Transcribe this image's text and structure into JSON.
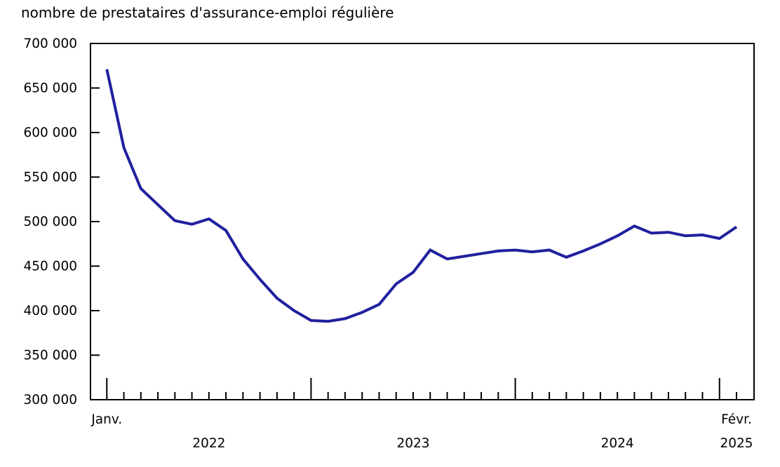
{
  "page": {
    "title": "nombre de prestataires d'assurance-emploi régulière"
  },
  "chart_data": {
    "type": "line",
    "title": "nombre de prestataires d'assurance-emploi régulière",
    "xlabel": "",
    "ylabel": "",
    "ylim": [
      300000,
      700000
    ],
    "grid": false,
    "legend": false,
    "line_color": "#20209e",
    "axis_color": "#000000",
    "x_start_label": "Janv.",
    "x_end_label": "Févr.",
    "year_labels": [
      "2022",
      "2023",
      "2024",
      "2025"
    ],
    "y_tick_labels_top_to_bottom": [
      "700 000",
      "650 000",
      "600 000",
      "550 000",
      "500 000",
      "450 000",
      "400 000",
      "350 000",
      "300 000"
    ],
    "y_tick_values_top_to_bottom": [
      700000,
      650000,
      600000,
      550000,
      500000,
      450000,
      400000,
      350000,
      300000
    ],
    "months": [
      "2022-01",
      "2022-02",
      "2022-03",
      "2022-04",
      "2022-05",
      "2022-06",
      "2022-07",
      "2022-08",
      "2022-09",
      "2022-10",
      "2022-11",
      "2022-12",
      "2023-01",
      "2023-02",
      "2023-03",
      "2023-04",
      "2023-05",
      "2023-06",
      "2023-07",
      "2023-08",
      "2023-09",
      "2023-10",
      "2023-11",
      "2023-12",
      "2024-01",
      "2024-02",
      "2024-03",
      "2024-04",
      "2024-05",
      "2024-06",
      "2024-07",
      "2024-08",
      "2024-09",
      "2024-10",
      "2024-11",
      "2024-12",
      "2025-01",
      "2025-02"
    ],
    "values": [
      671000,
      583000,
      537000,
      519000,
      501000,
      497000,
      503000,
      490000,
      458000,
      435000,
      414000,
      400000,
      389000,
      388000,
      391000,
      398000,
      407000,
      430000,
      443000,
      468000,
      458000,
      461000,
      464000,
      467000,
      468000,
      466000,
      468000,
      460000,
      467000,
      475000,
      484000,
      495000,
      487000,
      488000,
      484000,
      485000,
      481000,
      494000
    ]
  }
}
